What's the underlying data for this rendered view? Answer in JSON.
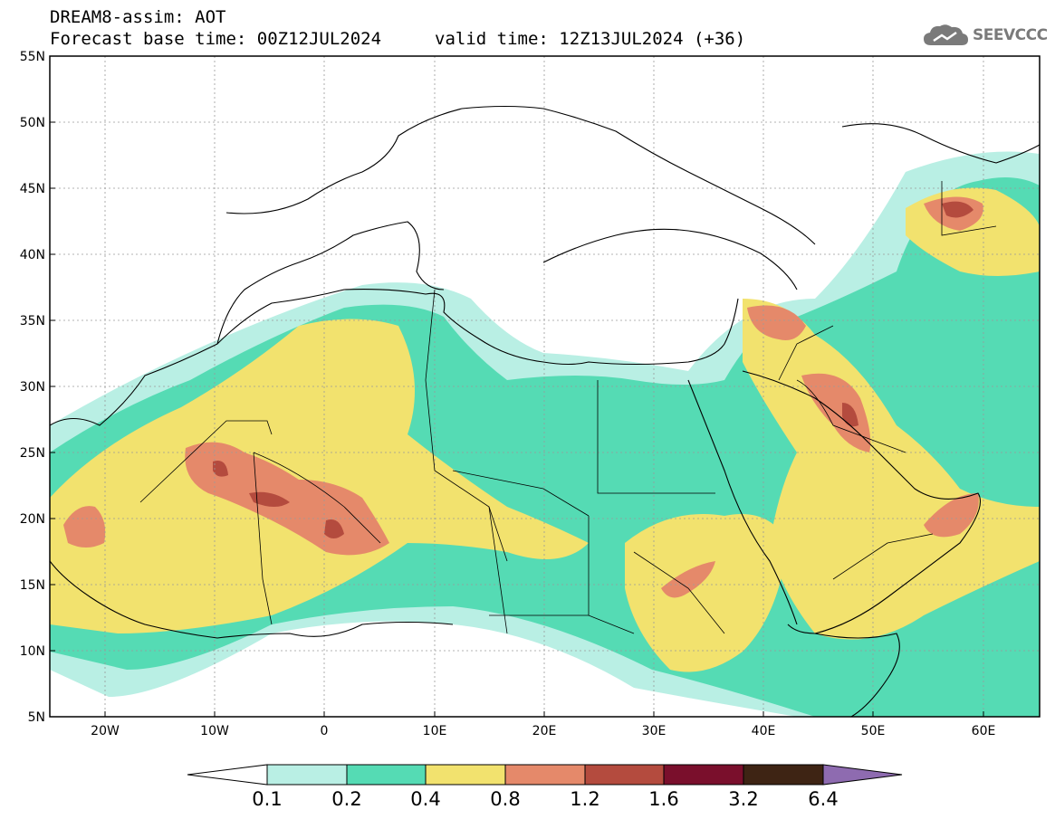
{
  "header": {
    "line1": "DREAM8-assim: AOT",
    "line2": "Forecast base time: 00Z12JUL2024",
    "valid": "valid time: 12Z13JUL2024 (+36)"
  },
  "logo": {
    "text": "SEEVCCC",
    "icon": "cloud-icon"
  },
  "map": {
    "lat_labels": [
      "55N",
      "50N",
      "45N",
      "40N",
      "35N",
      "30N",
      "25N",
      "20N",
      "15N",
      "10N",
      "5N"
    ],
    "lon_labels": [
      "20W",
      "10W",
      "0",
      "10E",
      "20E",
      "30E",
      "40E",
      "50E",
      "60E"
    ],
    "lat_range": [
      5,
      55
    ],
    "lon_range": [
      -25,
      65
    ],
    "gridlines": true
  },
  "colorbar": {
    "labels": [
      "0.1",
      "0.2",
      "0.4",
      "0.8",
      "1.2",
      "1.6",
      "3.2",
      "6.4"
    ],
    "colors": {
      "below": "#ffffff",
      "c1": "#b9efe4",
      "c2": "#55dbb4",
      "c3": "#f2e26e",
      "c4": "#e5896a",
      "c5": "#b44b3e",
      "c6": "#7a0f2c",
      "c7": "#3e2414",
      "above": "#8e6bb0"
    }
  }
}
